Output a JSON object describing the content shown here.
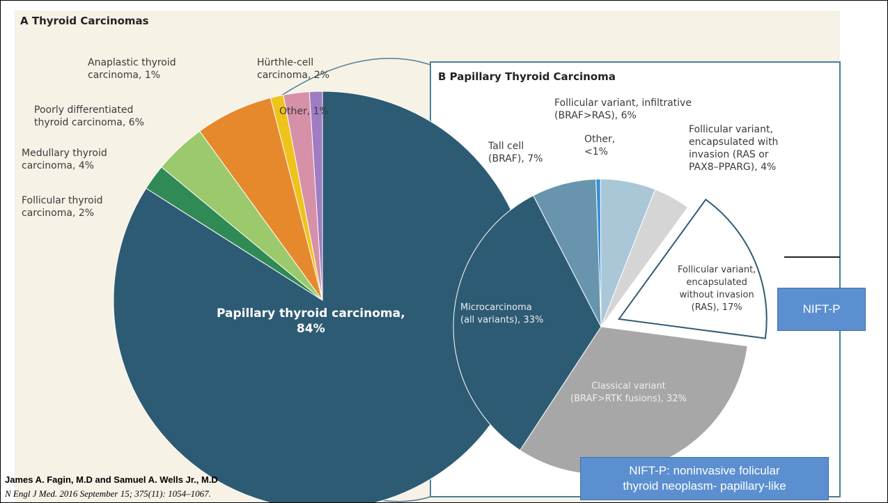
{
  "chart_data": [
    {
      "type": "pie",
      "title": "A  Thyroid Carcinomas",
      "values": [
        84,
        2,
        4,
        6,
        1,
        2,
        1
      ],
      "value_labels": [
        "Papillary thyroid carcinoma,\n84%",
        "Follicular thyroid\ncarcinoma, 2%",
        "Medullary thyroid\ncarcinoma, 4%",
        "Poorly differentiated\nthyroid carcinoma, 6%",
        "Anaplastic thyroid\ncarcinoma, 1%",
        "Hürthle-cell\ncarcinoma, 2%",
        "Other, 1%"
      ],
      "colors": [
        "#2e5b74",
        "#2f8a55",
        "#9cc96c",
        "#e6892c",
        "#f0c31c",
        "#d690a8",
        "#a07cc2"
      ]
    },
    {
      "type": "pie",
      "title": "B  Papillary Thyroid Carcinoma",
      "values": [
        0.5,
        6,
        4,
        17,
        32,
        33,
        7
      ],
      "value_labels": [
        "Other,\n<1%",
        "Follicular variant, infiltrative\n(BRAF>RAS), 6%",
        "Follicular variant,\nencapsulated with\ninvasion (RAS or\nPAX8–PPARG), 4%",
        "Follicular variant,\nencapsulated\nwithout invasion\n(RAS), 17%",
        "Classical variant\n(BRAF>RTK fusions), 32%",
        "Microcarcinoma\n(all variants), 33%",
        "Tall cell\n(BRAF), 7%"
      ],
      "colors": [
        "#3a8fd6",
        "#a9c7d7",
        "#d5d5d5",
        "#ffffff",
        "#a7a7a8",
        "#2e5b74",
        "#6895ad"
      ]
    }
  ],
  "callouts": [
    "NIFT-P",
    "NIFT-P: noninvasive folicular\nthyroid neoplasm- papillary-like"
  ],
  "citation": {
    "authors": "James A. Fagin, M.D and Samuel A. Wells Jr., M.D",
    "journal": "N Engl J Med. 2016 September 15; 375(11): 1054–1067."
  }
}
